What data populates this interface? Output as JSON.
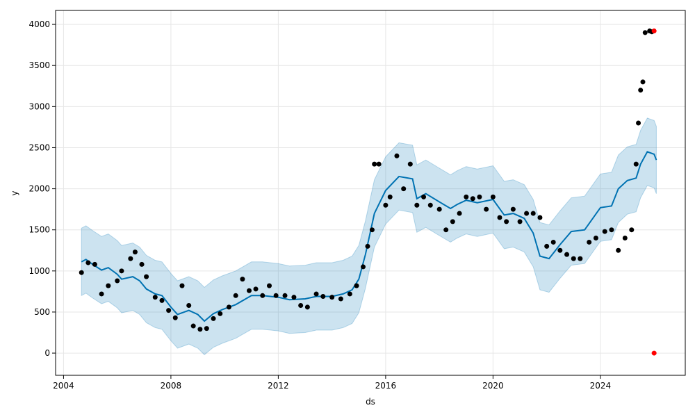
{
  "chart_data": {
    "type": "line",
    "title": "",
    "xlabel": "ds",
    "ylabel": "y",
    "x_range": [
      "2003-09-15",
      "2027-03-01"
    ],
    "ylim": [
      -270,
      4170
    ],
    "x_ticks": [
      {
        "date": "2004-01-01",
        "label": "2004"
      },
      {
        "date": "2008-01-01",
        "label": "2008"
      },
      {
        "date": "2012-01-01",
        "label": "2012"
      },
      {
        "date": "2016-01-01",
        "label": "2016"
      },
      {
        "date": "2020-01-01",
        "label": "2020"
      },
      {
        "date": "2024-01-01",
        "label": "2024"
      }
    ],
    "y_ticks": [
      0,
      500,
      1000,
      1500,
      2000,
      2500,
      3000,
      3500,
      4000
    ],
    "grid": true,
    "colors": {
      "forecast_line": "#0072B2",
      "uncertainty_band": "#0072B2",
      "observations": "#000000",
      "highlighted_points": "#ff0000"
    },
    "series": [
      {
        "kind": "forecast_yhat",
        "points": [
          [
            "2004-09-01",
            1110
          ],
          [
            "2004-11-01",
            1140
          ],
          [
            "2005-02-01",
            1080
          ],
          [
            "2005-06-01",
            1010
          ],
          [
            "2005-09-01",
            1040
          ],
          [
            "2006-01-01",
            960
          ],
          [
            "2006-03-01",
            900
          ],
          [
            "2006-08-01",
            930
          ],
          [
            "2006-11-01",
            880
          ],
          [
            "2007-02-01",
            780
          ],
          [
            "2007-06-01",
            720
          ],
          [
            "2007-09-01",
            700
          ],
          [
            "2008-01-01",
            560
          ],
          [
            "2008-04-01",
            470
          ],
          [
            "2008-09-01",
            520
          ],
          [
            "2009-01-01",
            470
          ],
          [
            "2009-04-01",
            390
          ],
          [
            "2009-08-01",
            480
          ],
          [
            "2009-12-01",
            530
          ],
          [
            "2010-06-01",
            590
          ],
          [
            "2011-01-01",
            700
          ],
          [
            "2011-06-01",
            700
          ],
          [
            "2012-01-01",
            680
          ],
          [
            "2012-06-01",
            650
          ],
          [
            "2013-01-01",
            660
          ],
          [
            "2013-06-01",
            690
          ],
          [
            "2014-01-01",
            690
          ],
          [
            "2014-06-01",
            720
          ],
          [
            "2014-10-01",
            770
          ],
          [
            "2015-01-01",
            900
          ],
          [
            "2015-04-01",
            1200
          ],
          [
            "2015-08-01",
            1700
          ],
          [
            "2016-01-01",
            1980
          ],
          [
            "2016-07-01",
            2150
          ],
          [
            "2017-01-01",
            2120
          ],
          [
            "2017-03-01",
            1880
          ],
          [
            "2017-07-01",
            1940
          ],
          [
            "2018-01-01",
            1840
          ],
          [
            "2018-06-01",
            1760
          ],
          [
            "2018-09-01",
            1810
          ],
          [
            "2019-01-01",
            1860
          ],
          [
            "2019-06-01",
            1830
          ],
          [
            "2020-01-01",
            1870
          ],
          [
            "2020-06-01",
            1680
          ],
          [
            "2020-10-01",
            1700
          ],
          [
            "2021-03-01",
            1640
          ],
          [
            "2021-07-01",
            1460
          ],
          [
            "2021-10-01",
            1180
          ],
          [
            "2022-02-01",
            1150
          ],
          [
            "2022-07-01",
            1320
          ],
          [
            "2022-12-01",
            1480
          ],
          [
            "2023-06-01",
            1500
          ],
          [
            "2024-01-01",
            1770
          ],
          [
            "2024-06-01",
            1790
          ],
          [
            "2024-09-01",
            2000
          ],
          [
            "2025-01-01",
            2100
          ],
          [
            "2025-05-01",
            2130
          ],
          [
            "2025-07-01",
            2300
          ],
          [
            "2025-10-01",
            2450
          ],
          [
            "2026-01-01",
            2420
          ],
          [
            "2026-02-01",
            2350
          ]
        ]
      },
      {
        "kind": "uncertainty_interval",
        "half_width": 410
      },
      {
        "kind": "observed_y",
        "points": [
          [
            "2004-09-01",
            980
          ],
          [
            "2004-12-01",
            1100
          ],
          [
            "2005-03-01",
            1080
          ],
          [
            "2005-06-01",
            720
          ],
          [
            "2005-09-01",
            820
          ],
          [
            "2006-01-01",
            880
          ],
          [
            "2006-03-01",
            1000
          ],
          [
            "2006-07-01",
            1150
          ],
          [
            "2006-09-01",
            1230
          ],
          [
            "2006-12-01",
            1080
          ],
          [
            "2007-02-01",
            930
          ],
          [
            "2007-06-01",
            680
          ],
          [
            "2007-09-01",
            640
          ],
          [
            "2007-12-01",
            520
          ],
          [
            "2008-03-01",
            430
          ],
          [
            "2008-06-01",
            820
          ],
          [
            "2008-09-01",
            580
          ],
          [
            "2008-11-01",
            330
          ],
          [
            "2009-02-01",
            290
          ],
          [
            "2009-05-01",
            300
          ],
          [
            "2009-08-01",
            420
          ],
          [
            "2009-11-01",
            480
          ],
          [
            "2010-03-01",
            560
          ],
          [
            "2010-06-01",
            700
          ],
          [
            "2010-09-01",
            900
          ],
          [
            "2010-12-01",
            760
          ],
          [
            "2011-03-01",
            780
          ],
          [
            "2011-06-01",
            700
          ],
          [
            "2011-09-01",
            820
          ],
          [
            "2011-12-01",
            700
          ],
          [
            "2012-04-01",
            700
          ],
          [
            "2012-08-01",
            680
          ],
          [
            "2012-11-01",
            580
          ],
          [
            "2013-02-01",
            560
          ],
          [
            "2013-06-01",
            720
          ],
          [
            "2013-09-01",
            690
          ],
          [
            "2014-01-01",
            680
          ],
          [
            "2014-05-01",
            660
          ],
          [
            "2014-09-01",
            720
          ],
          [
            "2014-12-01",
            820
          ],
          [
            "2015-03-01",
            1050
          ],
          [
            "2015-05-01",
            1300
          ],
          [
            "2015-07-01",
            1500
          ],
          [
            "2015-08-01",
            2300
          ],
          [
            "2015-10-01",
            2300
          ],
          [
            "2016-01-01",
            1800
          ],
          [
            "2016-03-01",
            1900
          ],
          [
            "2016-06-01",
            2400
          ],
          [
            "2016-09-01",
            2000
          ],
          [
            "2016-12-01",
            2300
          ],
          [
            "2017-03-01",
            1800
          ],
          [
            "2017-06-01",
            1900
          ],
          [
            "2017-09-01",
            1800
          ],
          [
            "2018-01-01",
            1750
          ],
          [
            "2018-04-01",
            1500
          ],
          [
            "2018-07-01",
            1600
          ],
          [
            "2018-10-01",
            1700
          ],
          [
            "2019-01-01",
            1900
          ],
          [
            "2019-04-01",
            1880
          ],
          [
            "2019-07-01",
            1900
          ],
          [
            "2019-10-01",
            1750
          ],
          [
            "2020-01-01",
            1900
          ],
          [
            "2020-04-01",
            1650
          ],
          [
            "2020-07-01",
            1600
          ],
          [
            "2020-10-01",
            1750
          ],
          [
            "2021-01-01",
            1600
          ],
          [
            "2021-04-01",
            1700
          ],
          [
            "2021-07-01",
            1700
          ],
          [
            "2021-10-01",
            1650
          ],
          [
            "2022-01-01",
            1300
          ],
          [
            "2022-04-01",
            1350
          ],
          [
            "2022-07-01",
            1250
          ],
          [
            "2022-10-01",
            1200
          ],
          [
            "2023-01-01",
            1150
          ],
          [
            "2023-04-01",
            1150
          ],
          [
            "2023-08-01",
            1350
          ],
          [
            "2023-11-01",
            1400
          ],
          [
            "2024-03-01",
            1480
          ],
          [
            "2024-06-01",
            1500
          ],
          [
            "2024-09-01",
            1250
          ],
          [
            "2024-12-01",
            1400
          ],
          [
            "2025-03-01",
            1500
          ],
          [
            "2025-05-01",
            2300
          ],
          [
            "2025-06-01",
            2800
          ],
          [
            "2025-07-01",
            3200
          ],
          [
            "2025-08-01",
            3300
          ],
          [
            "2025-09-01",
            3900
          ],
          [
            "2025-11-01",
            3920
          ],
          [
            "2025-12-01",
            3910
          ]
        ]
      },
      {
        "kind": "highlighted_points",
        "points": [
          [
            "2026-01-01",
            3920
          ],
          [
            "2026-01-01",
            0
          ]
        ]
      }
    ]
  }
}
